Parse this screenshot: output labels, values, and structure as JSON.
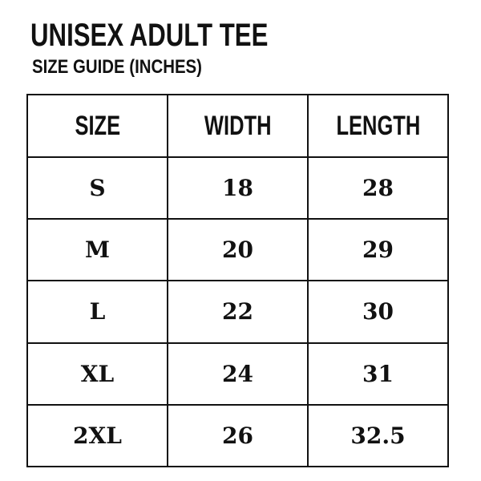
{
  "title": "UNISEX ADULT TEE",
  "subtitle": "SIZE GUIDE (INCHES)",
  "table": {
    "headers": [
      "SIZE",
      "WIDTH",
      "LENGTH"
    ],
    "rows": [
      [
        "S",
        "18",
        "28"
      ],
      [
        "M",
        "20",
        "29"
      ],
      [
        "L",
        "22",
        "30"
      ],
      [
        "XL",
        "24",
        "31"
      ],
      [
        "2XL",
        "26",
        "32.5"
      ]
    ]
  }
}
